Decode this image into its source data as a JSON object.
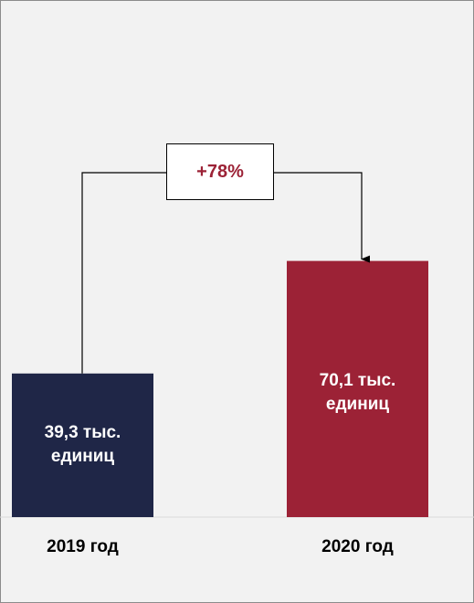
{
  "chart_data": {
    "type": "bar",
    "categories": [
      "2019 год",
      "2020 год"
    ],
    "values": [
      39.3,
      70.1
    ],
    "data_labels": [
      [
        "39,3 тыс.",
        "единиц"
      ],
      [
        "70,1 тыс.",
        "единиц"
      ]
    ],
    "colors": [
      "#1f2647",
      "#9c2236"
    ],
    "change_label": "+78%",
    "change_label_color": "#9c2236",
    "axis_visible": false,
    "grid": false
  }
}
